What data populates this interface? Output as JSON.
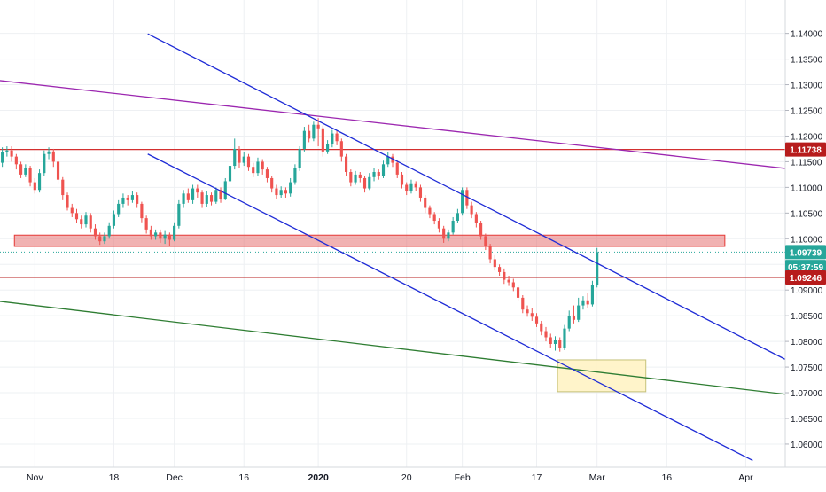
{
  "chart_data": {
    "type": "candlestick",
    "yaxis": {
      "ticks": [
        "1.14000",
        "1.13500",
        "1.13000",
        "1.12500",
        "1.12000",
        "1.11500",
        "1.11000",
        "1.10500",
        "1.10000",
        "1.09500",
        "1.09000",
        "1.08500",
        "1.08000",
        "1.07500",
        "1.07000",
        "1.06500",
        "1.06000"
      ],
      "range": [
        1.0555,
        1.1465
      ]
    },
    "xaxis": {
      "ticks": [
        {
          "label": "Nov",
          "day": 0,
          "bold": false
        },
        {
          "label": "18",
          "day": 17,
          "bold": false
        },
        {
          "label": "Dec",
          "day": 30,
          "bold": false
        },
        {
          "label": "16",
          "day": 45,
          "bold": false
        },
        {
          "label": "2020",
          "day": 61,
          "bold": true
        },
        {
          "label": "20",
          "day": 80,
          "bold": false
        },
        {
          "label": "Feb",
          "day": 92,
          "bold": false
        },
        {
          "label": "17",
          "day": 108,
          "bold": false
        },
        {
          "label": "Mar",
          "day": 121,
          "bold": false
        },
        {
          "label": "16",
          "day": 136,
          "bold": false
        },
        {
          "label": "Apr",
          "day": 153,
          "bold": false
        }
      ],
      "range": [
        -7.5,
        161.5
      ]
    },
    "price_labels": [
      {
        "value": "1.11738",
        "price": 1.11738,
        "color": "#b71c1c"
      },
      {
        "value": "1.09739",
        "price": 1.09739,
        "color": "#26a69a"
      },
      {
        "value": "05:37:59",
        "price": 1.0945,
        "color": "#26a69a"
      },
      {
        "value": "1.09246",
        "price": 1.09246,
        "color": "#b71c1c"
      }
    ],
    "hlines": [
      {
        "price": 1.11738,
        "color": "#d32f2f"
      },
      {
        "price": 1.09246,
        "color": "#b71c1c"
      },
      {
        "price": 1.09739,
        "color": "#26a69a",
        "dotted": true
      }
    ],
    "trendlines": [
      {
        "color": "#9c27b0",
        "from": [
          -7.5,
          1.1308
        ],
        "to": [
          161.5,
          1.1137
        ]
      },
      {
        "color": "#2e7d32",
        "from": [
          -7.5,
          1.0878
        ],
        "to": [
          161.5,
          1.0697
        ]
      },
      {
        "color": "#1e2bd6",
        "from": [
          24.3,
          1.1399
        ],
        "to": [
          161.5,
          1.0765
        ]
      },
      {
        "color": "#1e2bd6",
        "from": [
          24.3,
          1.1165
        ],
        "to": [
          154.5,
          1.0568
        ]
      }
    ],
    "zones": [
      {
        "color": "#e57373",
        "border": "#e53935",
        "alpha": 0.55,
        "from": [
          -4.4,
          1.1007
        ],
        "to": [
          148.5,
          1.0985
        ]
      },
      {
        "color": "#fff3c4",
        "border": "#c5c27a",
        "alpha": 0.9,
        "from": [
          112.5,
          1.0764
        ],
        "to": [
          131.5,
          1.0702
        ]
      }
    ],
    "candles": [
      [
        -7,
        1.1148,
        1.1168,
        1.114,
        1.1178
      ],
      [
        -6,
        1.1168,
        1.1172,
        1.116,
        1.118
      ],
      [
        -5,
        1.1172,
        1.116,
        1.115,
        1.118
      ],
      [
        -4,
        1.116,
        1.1145,
        1.1135,
        1.1165
      ],
      [
        -3,
        1.1145,
        1.1125,
        1.1118,
        1.115
      ],
      [
        -2,
        1.1125,
        1.1138,
        1.112,
        1.1145
      ],
      [
        -1,
        1.1138,
        1.111,
        1.1102,
        1.1142
      ],
      [
        0,
        1.111,
        1.1095,
        1.1088,
        1.1118
      ],
      [
        1,
        1.1095,
        1.1128,
        1.109,
        1.1135
      ],
      [
        2,
        1.1128,
        1.1165,
        1.1122,
        1.1172
      ],
      [
        3,
        1.1165,
        1.117,
        1.1155,
        1.1178
      ],
      [
        4,
        1.117,
        1.115,
        1.114,
        1.1175
      ],
      [
        5,
        1.115,
        1.1115,
        1.1108,
        1.1155
      ],
      [
        6,
        1.1115,
        1.1085,
        1.1075,
        1.112
      ],
      [
        7,
        1.1085,
        1.106,
        1.1055,
        1.109
      ],
      [
        8,
        1.106,
        1.105,
        1.1042,
        1.1068
      ],
      [
        9,
        1.105,
        1.1038,
        1.103,
        1.1058
      ],
      [
        10,
        1.1038,
        1.1028,
        1.102,
        1.1045
      ],
      [
        11,
        1.1028,
        1.1045,
        1.1022,
        1.1052
      ],
      [
        12,
        1.1045,
        1.102,
        1.1012,
        1.105
      ],
      [
        13,
        1.102,
        1.1005,
        1.0998,
        1.1028
      ],
      [
        14,
        1.1005,
        1.0995,
        1.0988,
        1.1012
      ],
      [
        15,
        1.0995,
        1.1005,
        1.099,
        1.1012
      ],
      [
        16,
        1.1005,
        1.1025,
        1.1,
        1.1032
      ],
      [
        17,
        1.1025,
        1.1048,
        1.102,
        1.1055
      ],
      [
        18,
        1.1048,
        1.1068,
        1.1042,
        1.1075
      ],
      [
        19,
        1.1068,
        1.108,
        1.106,
        1.1088
      ],
      [
        20,
        1.108,
        1.1075,
        1.1065,
        1.1085
      ],
      [
        21,
        1.1075,
        1.1085,
        1.107,
        1.1092
      ],
      [
        22,
        1.1085,
        1.1068,
        1.106,
        1.109
      ],
      [
        23,
        1.1068,
        1.104,
        1.1032,
        1.1072
      ],
      [
        24,
        1.104,
        1.1018,
        1.101,
        1.1045
      ],
      [
        25,
        1.1018,
        1.1005,
        1.0998,
        1.1025
      ],
      [
        26,
        1.1005,
        1.1012,
        1.0998,
        1.1018
      ],
      [
        27,
        1.1012,
        1.1,
        1.0992,
        1.1018
      ],
      [
        28,
        1.1,
        1.1008,
        1.099,
        1.1015
      ],
      [
        29,
        1.1008,
        1.0998,
        1.0985,
        1.1012
      ],
      [
        30,
        1.0998,
        1.1025,
        1.0995,
        1.1032
      ],
      [
        31,
        1.1025,
        1.1068,
        1.102,
        1.1075
      ],
      [
        32,
        1.1068,
        1.1088,
        1.106,
        1.1095
      ],
      [
        33,
        1.1088,
        1.1075,
        1.107,
        1.1098
      ],
      [
        34,
        1.1075,
        1.1098,
        1.1068,
        1.1105
      ],
      [
        35,
        1.1098,
        1.109,
        1.108,
        1.1105
      ],
      [
        36,
        1.109,
        1.1068,
        1.106,
        1.1095
      ],
      [
        37,
        1.1068,
        1.1085,
        1.1062,
        1.1092
      ],
      [
        38,
        1.1085,
        1.1072,
        1.1065,
        1.109
      ],
      [
        39,
        1.1072,
        1.1095,
        1.1068,
        1.11
      ],
      [
        40,
        1.1095,
        1.1078,
        1.107,
        1.11
      ],
      [
        41,
        1.1078,
        1.1112,
        1.1075,
        1.1118
      ],
      [
        42,
        1.1112,
        1.1142,
        1.1108,
        1.1148
      ],
      [
        43,
        1.1142,
        1.1175,
        1.1135,
        1.1195
      ],
      [
        44,
        1.1175,
        1.1148,
        1.1138,
        1.118
      ],
      [
        45,
        1.1148,
        1.116,
        1.1142,
        1.1168
      ],
      [
        46,
        1.116,
        1.114,
        1.1132,
        1.1165
      ],
      [
        47,
        1.114,
        1.1128,
        1.112,
        1.1148
      ],
      [
        48,
        1.1128,
        1.115,
        1.1122,
        1.1158
      ],
      [
        49,
        1.115,
        1.1135,
        1.1125,
        1.1155
      ],
      [
        50,
        1.1135,
        1.1118,
        1.111,
        1.114
      ],
      [
        51,
        1.1118,
        1.1098,
        1.109,
        1.1122
      ],
      [
        52,
        1.1098,
        1.1085,
        1.1078,
        1.1105
      ],
      [
        53,
        1.1085,
        1.1095,
        1.108,
        1.1102
      ],
      [
        54,
        1.1095,
        1.1088,
        1.108,
        1.11
      ],
      [
        55,
        1.1088,
        1.111,
        1.1082,
        1.1118
      ],
      [
        56,
        1.111,
        1.1138,
        1.1105,
        1.1145
      ],
      [
        57,
        1.1138,
        1.1175,
        1.1132,
        1.118
      ],
      [
        58,
        1.1175,
        1.121,
        1.117,
        1.1218
      ],
      [
        59,
        1.121,
        1.1195,
        1.1188,
        1.1222
      ],
      [
        60,
        1.1195,
        1.1222,
        1.119,
        1.1228
      ],
      [
        61,
        1.1222,
        1.1215,
        1.118,
        1.1235
      ],
      [
        62,
        1.1215,
        1.117,
        1.116,
        1.122
      ],
      [
        63,
        1.117,
        1.1185,
        1.1165,
        1.1192
      ],
      [
        64,
        1.1185,
        1.1205,
        1.1178,
        1.1212
      ],
      [
        65,
        1.1205,
        1.119,
        1.1182,
        1.121
      ],
      [
        66,
        1.119,
        1.116,
        1.115,
        1.1195
      ],
      [
        67,
        1.116,
        1.113,
        1.1122,
        1.1165
      ],
      [
        68,
        1.113,
        1.111,
        1.1102,
        1.1135
      ],
      [
        69,
        1.111,
        1.1125,
        1.1105,
        1.1132
      ],
      [
        70,
        1.1125,
        1.1118,
        1.111,
        1.113
      ],
      [
        71,
        1.1118,
        1.1098,
        1.109,
        1.1122
      ],
      [
        72,
        1.1098,
        1.112,
        1.1095,
        1.1128
      ],
      [
        73,
        1.112,
        1.113,
        1.1112,
        1.1138
      ],
      [
        74,
        1.113,
        1.1122,
        1.1115,
        1.1135
      ],
      [
        75,
        1.1122,
        1.1145,
        1.1118,
        1.1152
      ],
      [
        76,
        1.1145,
        1.116,
        1.114,
        1.1168
      ],
      [
        77,
        1.116,
        1.1148,
        1.114,
        1.1165
      ],
      [
        78,
        1.1148,
        1.1125,
        1.1118,
        1.1152
      ],
      [
        79,
        1.1125,
        1.1105,
        1.1098,
        1.113
      ],
      [
        80,
        1.1105,
        1.1092,
        1.1085,
        1.111
      ],
      [
        81,
        1.1092,
        1.1108,
        1.1088,
        1.1115
      ],
      [
        82,
        1.1108,
        1.11,
        1.1092,
        1.1112
      ],
      [
        83,
        1.11,
        1.108,
        1.1072,
        1.1105
      ],
      [
        84,
        1.108,
        1.106,
        1.105,
        1.1085
      ],
      [
        85,
        1.106,
        1.1048,
        1.104,
        1.1065
      ],
      [
        86,
        1.1048,
        1.1035,
        1.1028,
        1.1052
      ],
      [
        87,
        1.1035,
        1.102,
        1.1012,
        1.104
      ],
      [
        88,
        1.102,
        1.1,
        1.0992,
        1.1025
      ],
      [
        89,
        1.1,
        1.1012,
        1.0995,
        1.1018
      ],
      [
        90,
        1.1012,
        1.1035,
        1.1008,
        1.1042
      ],
      [
        91,
        1.1035,
        1.105,
        1.103,
        1.1058
      ],
      [
        92,
        1.105,
        1.1095,
        1.1045,
        1.11
      ],
      [
        93,
        1.1095,
        1.1065,
        1.1058,
        1.11
      ],
      [
        94,
        1.1065,
        1.1048,
        1.104,
        1.1072
      ],
      [
        95,
        1.1048,
        1.103,
        1.1022,
        1.1052
      ],
      [
        96,
        1.103,
        1.1005,
        1.0998,
        1.1035
      ],
      [
        97,
        1.1005,
        1.0985,
        1.0978,
        1.101
      ],
      [
        98,
        1.0985,
        1.096,
        1.0952,
        1.099
      ],
      [
        99,
        1.096,
        1.0945,
        1.0938,
        1.0968
      ],
      [
        100,
        1.0945,
        1.0935,
        1.0928,
        1.095
      ],
      [
        101,
        1.0935,
        1.092,
        1.0912,
        1.0942
      ],
      [
        102,
        1.092,
        1.0915,
        1.0908,
        1.0928
      ],
      [
        103,
        1.0915,
        1.0905,
        1.0898,
        1.0922
      ],
      [
        104,
        1.0905,
        1.0885,
        1.0878,
        1.091
      ],
      [
        105,
        1.0885,
        1.0862,
        1.0855,
        1.089
      ],
      [
        106,
        1.0862,
        1.0855,
        1.0848,
        1.087
      ],
      [
        107,
        1.0855,
        1.0848,
        1.084,
        1.0865
      ],
      [
        108,
        1.0848,
        1.0835,
        1.0828,
        1.0855
      ],
      [
        109,
        1.0835,
        1.082,
        1.0812,
        1.084
      ],
      [
        110,
        1.082,
        1.0808,
        1.08,
        1.0828
      ],
      [
        111,
        1.0808,
        1.0795,
        1.0788,
        1.0815
      ],
      [
        112,
        1.0795,
        1.0802,
        1.0782,
        1.081
      ],
      [
        113,
        1.0802,
        1.0788,
        1.078,
        1.0808
      ],
      [
        114,
        1.0788,
        1.0825,
        1.0783,
        1.0832
      ],
      [
        115,
        1.0825,
        1.085,
        1.082,
        1.086
      ],
      [
        116,
        1.085,
        1.0842,
        1.0835,
        1.087
      ],
      [
        117,
        1.0842,
        1.087,
        1.0838,
        1.0885
      ],
      [
        118,
        1.087,
        1.088,
        1.0862,
        1.0888
      ],
      [
        119,
        1.088,
        1.0872,
        1.0865,
        1.0895
      ],
      [
        120,
        1.0872,
        1.091,
        1.0868,
        1.0918
      ],
      [
        121,
        1.091,
        1.0974,
        1.0905,
        1.0982
      ]
    ],
    "up_color": "#26a69a",
    "down_color": "#ef5350"
  }
}
